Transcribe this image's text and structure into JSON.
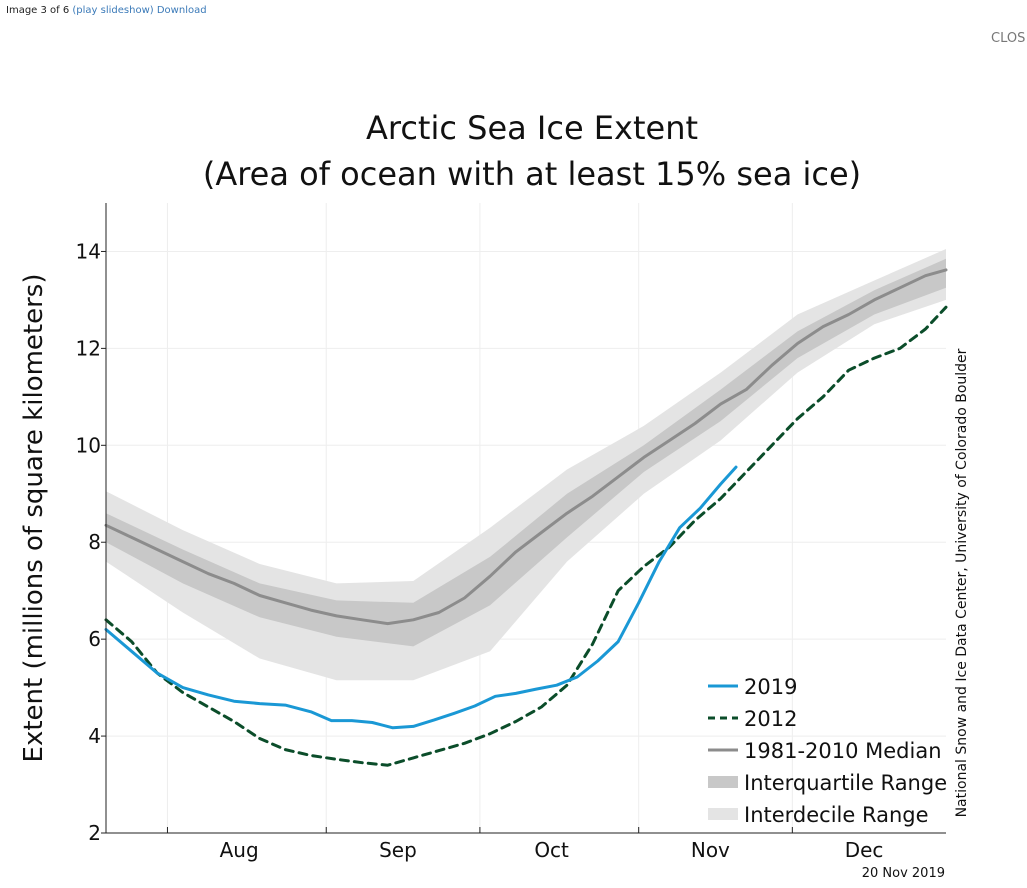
{
  "viewer": {
    "counter": "Image 3 of 6",
    "slideshow_link": "(play slideshow)",
    "download_link": "Download",
    "close_label": "CLOS"
  },
  "chart_data": {
    "type": "line",
    "title": "Arctic Sea Ice Extent",
    "subtitle": "(Area of ocean with at least 15% sea ice)",
    "ylabel": "Extent (millions of square kilometers)",
    "xlabel": "",
    "ylim": [
      2,
      15
    ],
    "xlim": [
      "2019-07-20",
      "2019-12-31"
    ],
    "yticks": [
      2,
      4,
      6,
      8,
      10,
      12,
      14
    ],
    "month_ticks": [
      "2019-08-01",
      "2019-09-01",
      "2019-10-01",
      "2019-11-01",
      "2019-12-01"
    ],
    "month_labels": [
      {
        "date": "2019-08-15",
        "label": "Aug"
      },
      {
        "date": "2019-09-15",
        "label": "Sep"
      },
      {
        "date": "2019-10-15",
        "label": "Oct"
      },
      {
        "date": "2019-11-15",
        "label": "Nov"
      },
      {
        "date": "2019-12-15",
        "label": "Dec"
      }
    ],
    "grid": true,
    "legend_position": "bottom-right",
    "credit": "National Snow and Ice Data Center, University of Colorado Boulder",
    "date_stamp": "20 Nov 2019",
    "colors": {
      "y2019": "#1a98d5",
      "y2012": "#0b4d2a",
      "median": "#8c8c8c",
      "interquartile": "#c8c8c8",
      "interdecile": "#e4e4e4"
    },
    "legend": [
      {
        "key": "y2019",
        "label": "2019"
      },
      {
        "key": "y2012",
        "label": "2012"
      },
      {
        "key": "median",
        "label": "1981-2010 Median"
      },
      {
        "key": "interquartile",
        "label": "Interquartile Range"
      },
      {
        "key": "interdecile",
        "label": "Interdecile Range"
      }
    ],
    "series": [
      {
        "name": "2019",
        "key": "y2019",
        "x": [
          "2019-07-20",
          "2019-07-25",
          "2019-07-30",
          "2019-08-04",
          "2019-08-09",
          "2019-08-14",
          "2019-08-19",
          "2019-08-24",
          "2019-08-29",
          "2019-09-02",
          "2019-09-06",
          "2019-09-10",
          "2019-09-14",
          "2019-09-18",
          "2019-09-22",
          "2019-09-26",
          "2019-09-30",
          "2019-10-04",
          "2019-10-08",
          "2019-10-12",
          "2019-10-16",
          "2019-10-20",
          "2019-10-24",
          "2019-10-28",
          "2019-11-01",
          "2019-11-05",
          "2019-11-09",
          "2019-11-13",
          "2019-11-17",
          "2019-11-20"
        ],
        "values": [
          6.2,
          5.75,
          5.3,
          5.0,
          4.85,
          4.72,
          4.67,
          4.64,
          4.5,
          4.32,
          4.32,
          4.28,
          4.17,
          4.2,
          4.33,
          4.47,
          4.62,
          4.82,
          4.88,
          4.97,
          5.05,
          5.22,
          5.55,
          5.95,
          6.75,
          7.6,
          8.3,
          8.7,
          9.2,
          9.55
        ]
      },
      {
        "name": "2012",
        "key": "y2012",
        "x": [
          "2019-07-20",
          "2019-07-25",
          "2019-07-30",
          "2019-08-04",
          "2019-08-09",
          "2019-08-14",
          "2019-08-19",
          "2019-08-24",
          "2019-08-29",
          "2019-09-03",
          "2019-09-08",
          "2019-09-13",
          "2019-09-18",
          "2019-09-23",
          "2019-09-28",
          "2019-10-03",
          "2019-10-08",
          "2019-10-13",
          "2019-10-18",
          "2019-10-23",
          "2019-10-28",
          "2019-11-02",
          "2019-11-07",
          "2019-11-12",
          "2019-11-17",
          "2019-11-22",
          "2019-11-27",
          "2019-12-02",
          "2019-12-07",
          "2019-12-12",
          "2019-12-17",
          "2019-12-22",
          "2019-12-27",
          "2019-12-31"
        ],
        "values": [
          6.4,
          5.95,
          5.3,
          4.9,
          4.6,
          4.3,
          3.95,
          3.72,
          3.6,
          3.52,
          3.45,
          3.4,
          3.55,
          3.7,
          3.85,
          4.05,
          4.3,
          4.6,
          5.05,
          5.9,
          7.0,
          7.5,
          7.9,
          8.45,
          8.9,
          9.45,
          10.0,
          10.55,
          11.0,
          11.55,
          11.8,
          12.0,
          12.4,
          12.85
        ]
      },
      {
        "name": "1981-2010 Median",
        "key": "median",
        "x": [
          "2019-07-20",
          "2019-07-25",
          "2019-07-30",
          "2019-08-04",
          "2019-08-09",
          "2019-08-14",
          "2019-08-19",
          "2019-08-24",
          "2019-08-29",
          "2019-09-03",
          "2019-09-08",
          "2019-09-13",
          "2019-09-18",
          "2019-09-23",
          "2019-09-28",
          "2019-10-03",
          "2019-10-08",
          "2019-10-13",
          "2019-10-18",
          "2019-10-23",
          "2019-10-28",
          "2019-11-02",
          "2019-11-07",
          "2019-11-12",
          "2019-11-17",
          "2019-11-22",
          "2019-11-27",
          "2019-12-02",
          "2019-12-07",
          "2019-12-12",
          "2019-12-17",
          "2019-12-22",
          "2019-12-27",
          "2019-12-31"
        ],
        "values": [
          8.35,
          8.1,
          7.85,
          7.6,
          7.35,
          7.15,
          6.9,
          6.75,
          6.6,
          6.48,
          6.4,
          6.32,
          6.4,
          6.55,
          6.85,
          7.3,
          7.8,
          8.2,
          8.6,
          8.95,
          9.35,
          9.75,
          10.1,
          10.45,
          10.85,
          11.15,
          11.65,
          12.1,
          12.45,
          12.7,
          13.0,
          13.25,
          13.5,
          13.62
        ]
      }
    ],
    "bands": [
      {
        "name": "Interdecile Range",
        "key": "interdecile",
        "x": [
          "2019-07-20",
          "2019-08-04",
          "2019-08-19",
          "2019-09-03",
          "2019-09-18",
          "2019-10-03",
          "2019-10-18",
          "2019-11-02",
          "2019-11-17",
          "2019-12-02",
          "2019-12-17",
          "2019-12-31"
        ],
        "upper": [
          9.05,
          8.25,
          7.55,
          7.15,
          7.2,
          8.3,
          9.5,
          10.4,
          11.5,
          12.7,
          13.4,
          14.05
        ],
        "lower": [
          7.6,
          6.55,
          5.6,
          5.15,
          5.15,
          5.75,
          7.6,
          9.0,
          10.1,
          11.5,
          12.5,
          13.0
        ]
      },
      {
        "name": "Interquartile Range",
        "key": "interquartile",
        "x": [
          "2019-07-20",
          "2019-08-04",
          "2019-08-19",
          "2019-09-03",
          "2019-09-18",
          "2019-10-03",
          "2019-10-18",
          "2019-11-02",
          "2019-11-17",
          "2019-12-02",
          "2019-12-17",
          "2019-12-31"
        ],
        "upper": [
          8.6,
          7.85,
          7.15,
          6.8,
          6.75,
          7.7,
          9.0,
          10.0,
          11.15,
          12.35,
          13.2,
          13.85
        ],
        "lower": [
          8.0,
          7.15,
          6.45,
          6.05,
          5.85,
          6.7,
          8.1,
          9.45,
          10.5,
          11.8,
          12.7,
          13.25
        ]
      }
    ]
  }
}
